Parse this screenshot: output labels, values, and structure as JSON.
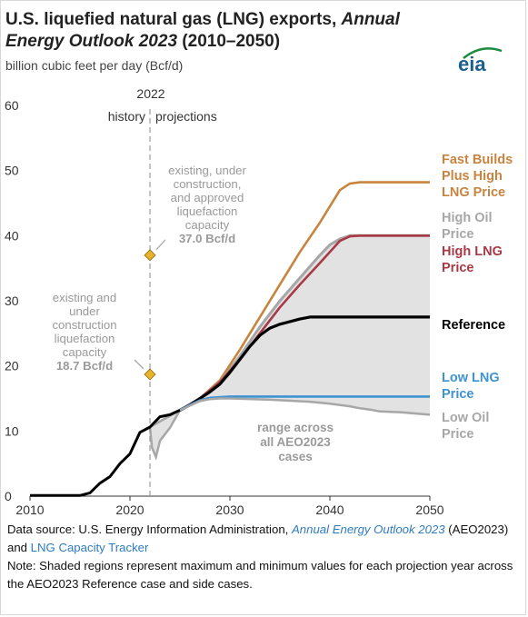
{
  "header": {
    "title_part1": "U.S. liquefied natural gas (LNG) exports, ",
    "title_italic": "Annual Energy Outlook 2023",
    "title_part2": " (2010–2050)",
    "subtitle": "billion cubic feet per day (Bcf/d)",
    "logo_text": "eia",
    "logo_color": "#1b8b3f"
  },
  "chart_data": {
    "type": "line",
    "xlim": [
      2010,
      2050
    ],
    "ylim": [
      0,
      60
    ],
    "x_ticks": [
      2010,
      2020,
      2030,
      2040,
      2050
    ],
    "y_ticks": [
      0,
      10,
      20,
      30,
      40,
      50,
      60
    ],
    "grid": false,
    "divider": {
      "x": 2022,
      "year_label": "2022",
      "left_label": "history",
      "right_label": "projections"
    },
    "history": {
      "color": "#000000",
      "points": [
        [
          2010,
          0.1
        ],
        [
          2011,
          0.1
        ],
        [
          2012,
          0.1
        ],
        [
          2013,
          0.1
        ],
        [
          2014,
          0.1
        ],
        [
          2015,
          0.1
        ],
        [
          2016,
          0.5
        ],
        [
          2017,
          2
        ],
        [
          2018,
          3
        ],
        [
          2019,
          5
        ],
        [
          2020,
          6.5
        ],
        [
          2021,
          9.8
        ],
        [
          2022,
          10.6
        ],
        [
          2023,
          12.2
        ],
        [
          2024,
          12.5
        ],
        [
          2025,
          13.2
        ]
      ]
    },
    "band": {
      "label": "range across all AEO2023 cases",
      "color": "#e2e2e2",
      "upper": [
        [
          2025,
          13.2
        ],
        [
          2027,
          15
        ],
        [
          2029,
          17.5
        ],
        [
          2031,
          21.5
        ],
        [
          2033,
          26
        ],
        [
          2035,
          30
        ],
        [
          2037,
          33.5
        ],
        [
          2039,
          37
        ],
        [
          2040,
          38.6
        ],
        [
          2041,
          39.5
        ],
        [
          2042,
          40
        ],
        [
          2043,
          40
        ],
        [
          2044,
          40
        ],
        [
          2050,
          40
        ]
      ],
      "lower": [
        [
          2025,
          13.2
        ],
        [
          2024,
          10.5
        ],
        [
          2023,
          8.5
        ],
        [
          2022.6,
          6
        ],
        [
          2022.2,
          7.5
        ],
        [
          2022,
          10.6
        ]
      ],
      "lower_main": [
        [
          2025,
          13.2
        ],
        [
          2027,
          14.6
        ],
        [
          2028,
          14.9
        ],
        [
          2029,
          15
        ],
        [
          2030,
          15
        ],
        [
          2034,
          14.8
        ],
        [
          2038,
          14.5
        ],
        [
          2040,
          14.2
        ],
        [
          2042,
          13.8
        ],
        [
          2043,
          13.5
        ],
        [
          2044,
          13.3
        ],
        [
          2045,
          13
        ],
        [
          2047,
          12.9
        ],
        [
          2050,
          12.5
        ]
      ]
    },
    "series": [
      {
        "name": "Fast Builds Plus High LNG Price",
        "color": "#c8843f",
        "points": [
          [
            2025,
            13.2
          ],
          [
            2027,
            15
          ],
          [
            2029,
            17.8
          ],
          [
            2031,
            22.5
          ],
          [
            2033,
            27.5
          ],
          [
            2035,
            32.5
          ],
          [
            2037,
            37.5
          ],
          [
            2039,
            42
          ],
          [
            2041,
            47
          ],
          [
            2042,
            48
          ],
          [
            2043,
            48.2
          ],
          [
            2044,
            48.2
          ],
          [
            2050,
            48.2
          ]
        ]
      },
      {
        "name": "High Oil Price",
        "color": "#a7a7a7",
        "points": [
          [
            2025,
            13.2
          ],
          [
            2027,
            15
          ],
          [
            2029,
            17.5
          ],
          [
            2031,
            21.5
          ],
          [
            2033,
            26
          ],
          [
            2035,
            30
          ],
          [
            2037,
            33.5
          ],
          [
            2039,
            37
          ],
          [
            2040,
            38.6
          ],
          [
            2041,
            39.5
          ],
          [
            2042,
            40
          ],
          [
            2043,
            40
          ],
          [
            2050,
            40
          ]
        ]
      },
      {
        "name": "High LNG Price",
        "color": "#a83945",
        "points": [
          [
            2025,
            13.2
          ],
          [
            2027,
            15
          ],
          [
            2029,
            17.5
          ],
          [
            2031,
            21
          ],
          [
            2033,
            25
          ],
          [
            2035,
            29
          ],
          [
            2037,
            32.5
          ],
          [
            2039,
            35.8
          ],
          [
            2040,
            37.5
          ],
          [
            2041,
            39.2
          ],
          [
            2042,
            39.9
          ],
          [
            2043,
            40
          ],
          [
            2050,
            40
          ]
        ]
      },
      {
        "name": "Reference",
        "color": "#000000",
        "points": [
          [
            2025,
            13.2
          ],
          [
            2026,
            14
          ],
          [
            2027,
            15
          ],
          [
            2028,
            16
          ],
          [
            2029,
            17.2
          ],
          [
            2030,
            19
          ],
          [
            2031,
            21
          ],
          [
            2032,
            23
          ],
          [
            2033,
            24.7
          ],
          [
            2034,
            25.8
          ],
          [
            2035,
            26.4
          ],
          [
            2036,
            26.8
          ],
          [
            2037,
            27.2
          ],
          [
            2038,
            27.5
          ],
          [
            2050,
            27.5
          ]
        ]
      },
      {
        "name": "Low LNG Price",
        "color": "#3e93d1",
        "points": [
          [
            2025,
            13.2
          ],
          [
            2026,
            14
          ],
          [
            2027,
            14.7
          ],
          [
            2028,
            15.1
          ],
          [
            2030,
            15.3
          ],
          [
            2050,
            15.3
          ]
        ]
      },
      {
        "name": "Low Oil Price",
        "color": "#a7a7a7",
        "points": [
          [
            2025,
            13.2
          ],
          [
            2027,
            14.6
          ],
          [
            2028,
            14.9
          ],
          [
            2029,
            15
          ],
          [
            2030,
            15
          ],
          [
            2034,
            14.8
          ],
          [
            2038,
            14.5
          ],
          [
            2040,
            14.2
          ],
          [
            2042,
            13.8
          ],
          [
            2043,
            13.5
          ],
          [
            2044,
            13.3
          ],
          [
            2045,
            13
          ],
          [
            2047,
            12.9
          ],
          [
            2050,
            12.5
          ]
        ]
      }
    ],
    "series_labels": [
      {
        "lines": [
          "Fast Builds",
          "Plus High",
          "LNG Price"
        ],
        "color": "#c8843f"
      },
      {
        "lines": [
          "High Oil",
          "Price"
        ],
        "color": "#a7a7a7"
      },
      {
        "lines": [
          "High LNG",
          "Price"
        ],
        "color": "#a83945"
      },
      {
        "lines": [
          "Reference"
        ],
        "color": "#000000"
      },
      {
        "lines": [
          "Low LNG",
          "Price"
        ],
        "color": "#3e93d1"
      },
      {
        "lines": [
          "Low Oil",
          "Price"
        ],
        "color": "#a7a7a7"
      }
    ],
    "capacity_markers": [
      {
        "x": 2022,
        "y": 37.0,
        "lines": [
          "existing, under",
          "construction,",
          "and approved",
          "liquefaction",
          "capacity"
        ],
        "value_text": "37.0 Bcf/d"
      },
      {
        "x": 2022,
        "y": 18.7,
        "lines": [
          "existing and",
          "under",
          "construction",
          "liquefaction",
          "capacity"
        ],
        "value_text": "18.7 Bcf/d"
      }
    ],
    "marker_color": "#e8b22a",
    "range_label_lines": [
      "range across",
      "all AEO2023",
      "cases"
    ]
  },
  "notes": {
    "source_prefix": "Data source: U.S. Energy Information Administration, ",
    "source_link1": "Annual Energy Outlook 2023",
    "source_mid": " (AEO2023) and ",
    "source_link2": "LNG Capacity Tracker",
    "note": "Note: Shaded regions represent maximum and minimum values for each projection year across the AEO2023 Reference case and side cases."
  }
}
